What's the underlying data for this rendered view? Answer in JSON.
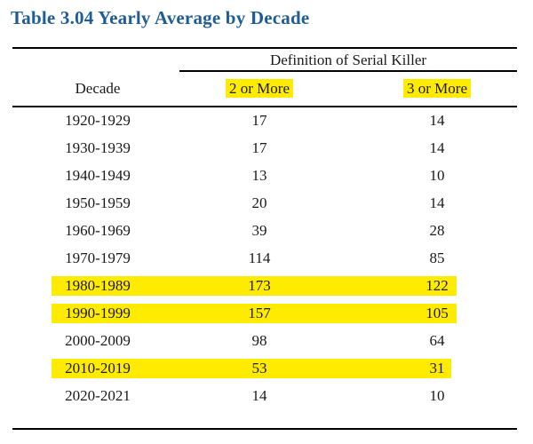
{
  "title": "Table 3.04 Yearly Average by Decade",
  "group_header": "Definition of Serial Killer",
  "columns": {
    "decade": "Decade",
    "two_or_more": "2 or More",
    "three_or_more": "3 or More"
  },
  "highlight_color": "#ffeb00",
  "title_color": "#1f5d98",
  "rows": [
    {
      "decade": "1920-1929",
      "two_or_more": "17",
      "three_or_more": "14",
      "highlighted": false
    },
    {
      "decade": "1930-1939",
      "two_or_more": "17",
      "three_or_more": "14",
      "highlighted": false
    },
    {
      "decade": "1940-1949",
      "two_or_more": "13",
      "three_or_more": "10",
      "highlighted": false
    },
    {
      "decade": "1950-1959",
      "two_or_more": "20",
      "three_or_more": "14",
      "highlighted": false
    },
    {
      "decade": "1960-1969",
      "two_or_more": "39",
      "three_or_more": "28",
      "highlighted": false
    },
    {
      "decade": "1970-1979",
      "two_or_more": "114",
      "three_or_more": "85",
      "highlighted": false
    },
    {
      "decade": "1980-1989",
      "two_or_more": "173",
      "three_or_more": "122",
      "highlighted": true
    },
    {
      "decade": "1990-1999",
      "two_or_more": "157",
      "three_or_more": "105",
      "highlighted": true
    },
    {
      "decade": "2000-2009",
      "two_or_more": "98",
      "three_or_more": "64",
      "highlighted": false
    },
    {
      "decade": "2010-2019",
      "two_or_more": "53",
      "three_or_more": "31",
      "highlighted": true
    },
    {
      "decade": "2020-2021",
      "two_or_more": "14",
      "three_or_more": "10",
      "highlighted": false
    }
  ]
}
